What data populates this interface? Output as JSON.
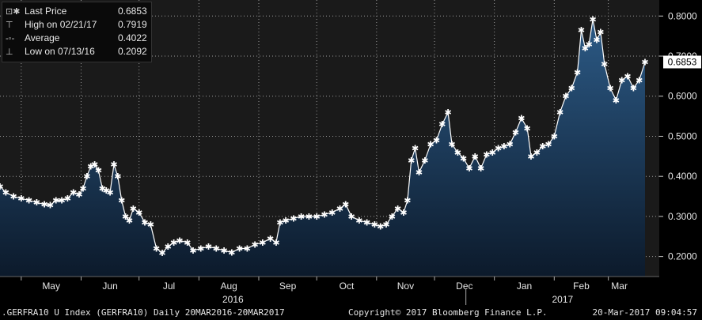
{
  "legend": {
    "last_price_label": "Last Price",
    "last_price_value": "0.6853",
    "high_label": "High on 02/21/17",
    "high_value": "0.7919",
    "average_label": "Average",
    "average_value": "0.4022",
    "low_label": "Low on 07/13/16",
    "low_value": "0.2092"
  },
  "last_price_tag": "0.6853",
  "footer": {
    "left": ".GERFRA10 U Index (GERFRA10)  Daily 20MAR2016-20MAR2017",
    "center": "Copyright© 2017 Bloomberg Finance L.P.",
    "right": "20-Mar-2017 09:04:57"
  },
  "colors": {
    "background": "#000000",
    "plot_background": "#1a1a1a",
    "area_top": "#2c5a86",
    "area_bottom": "#0c1a2b",
    "line": "#ffffff"
  },
  "chart_data": {
    "type": "area",
    "y_axis_side": "right",
    "grid": true,
    "ylim": [
      0.15,
      0.84
    ],
    "y_ticks": [
      "0.2000",
      "0.3000",
      "0.4000",
      "0.5000",
      "0.6000",
      "0.7000",
      "0.8000"
    ],
    "y_tick_values": [
      0.2,
      0.3,
      0.4,
      0.5,
      0.6,
      0.7,
      0.8
    ],
    "x_month_labels": [
      "May",
      "Jun",
      "Jul",
      "Aug",
      "Sep",
      "Oct",
      "Nov",
      "Dec",
      "Jan",
      "Feb",
      "Mar"
    ],
    "x_year_labels": [
      "2016",
      "2017"
    ],
    "x_start": "2016-04-20",
    "x_end": "2017-03-20",
    "month_starts": [
      "2016-05-01",
      "2016-06-01",
      "2016-07-01",
      "2016-08-01",
      "2016-09-01",
      "2016-10-01",
      "2016-11-01",
      "2016-12-01",
      "2017-01-01",
      "2017-02-01",
      "2017-03-01"
    ],
    "series": [
      {
        "name": "Last Price",
        "points": [
          [
            "2016-04-20",
            0.375
          ],
          [
            "2016-04-23",
            0.36
          ],
          [
            "2016-04-27",
            0.35
          ],
          [
            "2016-05-01",
            0.345
          ],
          [
            "2016-05-05",
            0.34
          ],
          [
            "2016-05-09",
            0.335
          ],
          [
            "2016-05-13",
            0.33
          ],
          [
            "2016-05-16",
            0.328
          ],
          [
            "2016-05-19",
            0.34
          ],
          [
            "2016-05-22",
            0.34
          ],
          [
            "2016-05-25",
            0.345
          ],
          [
            "2016-05-28",
            0.36
          ],
          [
            "2016-05-31",
            0.355
          ],
          [
            "2016-06-02",
            0.37
          ],
          [
            "2016-06-04",
            0.4
          ],
          [
            "2016-06-06",
            0.425
          ],
          [
            "2016-06-08",
            0.43
          ],
          [
            "2016-06-10",
            0.415
          ],
          [
            "2016-06-12",
            0.37
          ],
          [
            "2016-06-14",
            0.365
          ],
          [
            "2016-06-16",
            0.36
          ],
          [
            "2016-06-18",
            0.43
          ],
          [
            "2016-06-20",
            0.4
          ],
          [
            "2016-06-22",
            0.34
          ],
          [
            "2016-06-24",
            0.3
          ],
          [
            "2016-06-26",
            0.29
          ],
          [
            "2016-06-28",
            0.32
          ],
          [
            "2016-07-01",
            0.31
          ],
          [
            "2016-07-04",
            0.285
          ],
          [
            "2016-07-07",
            0.28
          ],
          [
            "2016-07-10",
            0.22
          ],
          [
            "2016-07-13",
            0.2092
          ],
          [
            "2016-07-16",
            0.225
          ],
          [
            "2016-07-19",
            0.235
          ],
          [
            "2016-07-22",
            0.24
          ],
          [
            "2016-07-26",
            0.235
          ],
          [
            "2016-07-29",
            0.215
          ],
          [
            "2016-08-02",
            0.22
          ],
          [
            "2016-08-06",
            0.225
          ],
          [
            "2016-08-10",
            0.22
          ],
          [
            "2016-08-14",
            0.215
          ],
          [
            "2016-08-18",
            0.21
          ],
          [
            "2016-08-22",
            0.22
          ],
          [
            "2016-08-26",
            0.22
          ],
          [
            "2016-08-30",
            0.23
          ],
          [
            "2016-09-03",
            0.235
          ],
          [
            "2016-09-07",
            0.245
          ],
          [
            "2016-09-10",
            0.235
          ],
          [
            "2016-09-12",
            0.285
          ],
          [
            "2016-09-15",
            0.29
          ],
          [
            "2016-09-19",
            0.295
          ],
          [
            "2016-09-23",
            0.3
          ],
          [
            "2016-09-27",
            0.3
          ],
          [
            "2016-10-01",
            0.3
          ],
          [
            "2016-10-05",
            0.305
          ],
          [
            "2016-10-09",
            0.31
          ],
          [
            "2016-10-13",
            0.32
          ],
          [
            "2016-10-16",
            0.33
          ],
          [
            "2016-10-19",
            0.3
          ],
          [
            "2016-10-23",
            0.29
          ],
          [
            "2016-10-27",
            0.285
          ],
          [
            "2016-10-31",
            0.28
          ],
          [
            "2016-11-03",
            0.275
          ],
          [
            "2016-11-06",
            0.28
          ],
          [
            "2016-11-09",
            0.3
          ],
          [
            "2016-11-12",
            0.32
          ],
          [
            "2016-11-15",
            0.31
          ],
          [
            "2016-11-17",
            0.34
          ],
          [
            "2016-11-19",
            0.44
          ],
          [
            "2016-11-21",
            0.47
          ],
          [
            "2016-11-23",
            0.41
          ],
          [
            "2016-11-26",
            0.44
          ],
          [
            "2016-11-29",
            0.48
          ],
          [
            "2016-12-02",
            0.49
          ],
          [
            "2016-12-05",
            0.53
          ],
          [
            "2016-12-08",
            0.56
          ],
          [
            "2016-12-10",
            0.48
          ],
          [
            "2016-12-13",
            0.46
          ],
          [
            "2016-12-16",
            0.445
          ],
          [
            "2016-12-19",
            0.42
          ],
          [
            "2016-12-22",
            0.45
          ],
          [
            "2016-12-25",
            0.42
          ],
          [
            "2016-12-28",
            0.455
          ],
          [
            "2016-12-31",
            0.46
          ],
          [
            "2017-01-03",
            0.47
          ],
          [
            "2017-01-06",
            0.475
          ],
          [
            "2017-01-09",
            0.48
          ],
          [
            "2017-01-12",
            0.51
          ],
          [
            "2017-01-15",
            0.545
          ],
          [
            "2017-01-18",
            0.52
          ],
          [
            "2017-01-20",
            0.45
          ],
          [
            "2017-01-23",
            0.46
          ],
          [
            "2017-01-26",
            0.475
          ],
          [
            "2017-01-29",
            0.48
          ],
          [
            "2017-02-01",
            0.5
          ],
          [
            "2017-02-04",
            0.56
          ],
          [
            "2017-02-07",
            0.6
          ],
          [
            "2017-02-10",
            0.62
          ],
          [
            "2017-02-13",
            0.66
          ],
          [
            "2017-02-15",
            0.765
          ],
          [
            "2017-02-17",
            0.72
          ],
          [
            "2017-02-19",
            0.73
          ],
          [
            "2017-02-21",
            0.7919
          ],
          [
            "2017-02-23",
            0.74
          ],
          [
            "2017-02-25",
            0.76
          ],
          [
            "2017-02-27",
            0.68
          ],
          [
            "2017-03-02",
            0.62
          ],
          [
            "2017-03-05",
            0.59
          ],
          [
            "2017-03-08",
            0.64
          ],
          [
            "2017-03-11",
            0.65
          ],
          [
            "2017-03-14",
            0.62
          ],
          [
            "2017-03-17",
            0.64
          ],
          [
            "2017-03-20",
            0.6853
          ]
        ]
      }
    ]
  }
}
